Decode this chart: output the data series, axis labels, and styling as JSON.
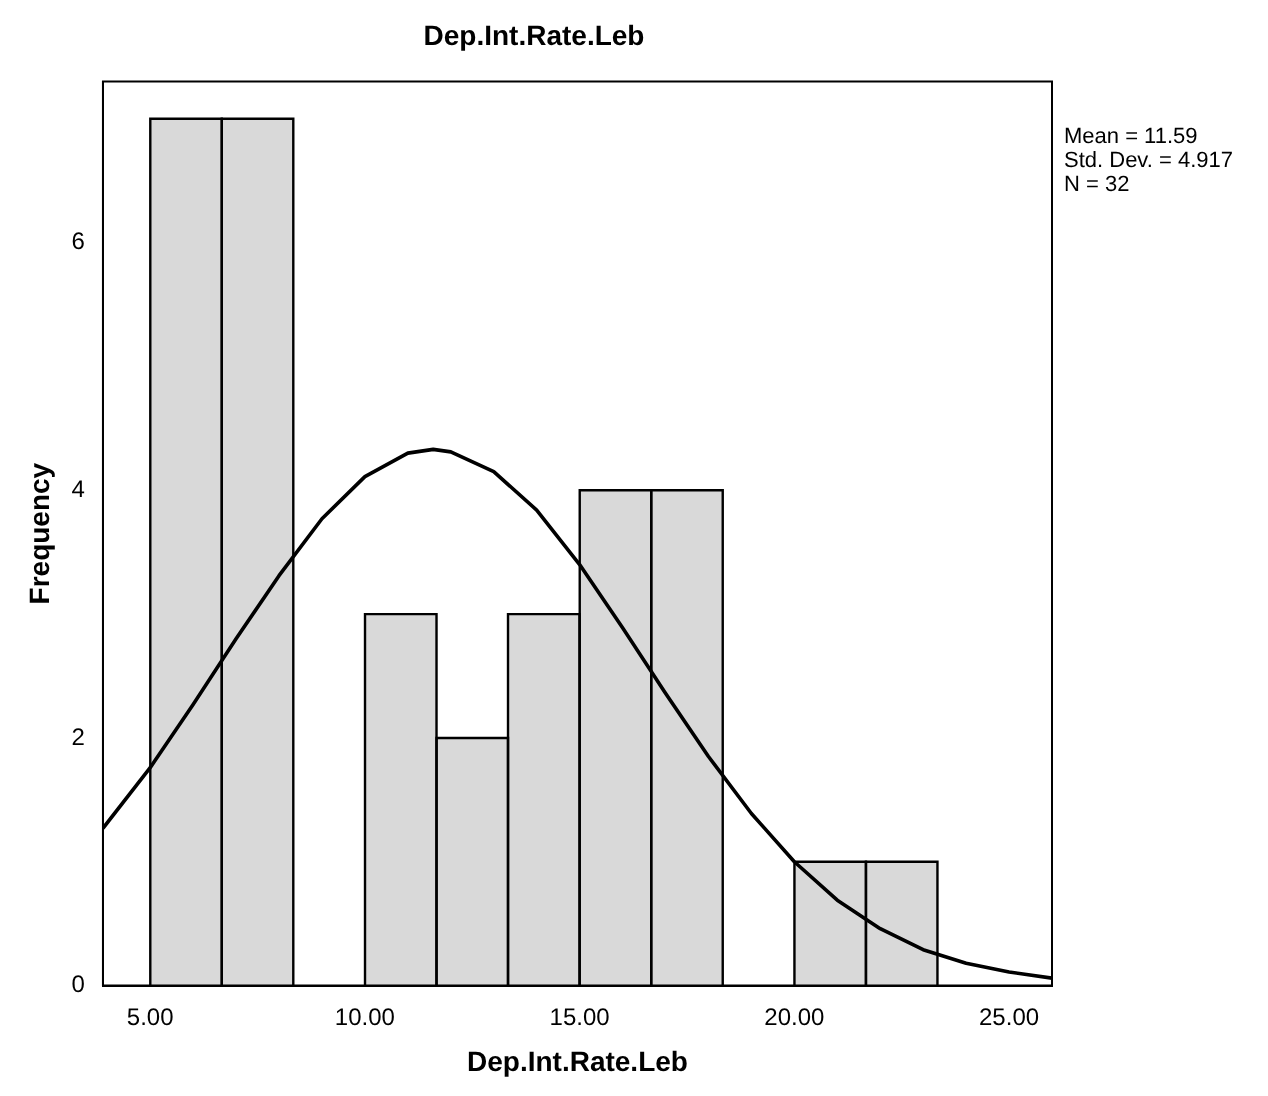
{
  "chart_data": {
    "type": "histogram",
    "title": "Dep.Int.Rate.Leb",
    "xlabel": "Dep.Int.Rate.Leb",
    "ylabel": "Frequency",
    "bins": [
      5,
      6.67,
      8.33,
      10,
      11.67,
      13.33,
      15,
      16.67,
      18.33,
      20,
      21.67,
      23.33
    ],
    "values": [
      7,
      7,
      0,
      3,
      2,
      3,
      4,
      4,
      0,
      1,
      1
    ],
    "color": "#d9d9d9",
    "series": [
      {
        "type": "line",
        "color": "#000000",
        "x": [
          3.9,
          5,
          6,
          7,
          8,
          9,
          10,
          11,
          11.59,
          12,
          13,
          14,
          15,
          16,
          17,
          18,
          19,
          20,
          21,
          22,
          23,
          24,
          25,
          26
        ],
        "values": [
          1.27,
          1.76,
          2.27,
          2.8,
          3.31,
          3.77,
          4.11,
          4.3,
          4.33,
          4.31,
          4.15,
          3.84,
          3.4,
          2.89,
          2.36,
          1.85,
          1.39,
          1.0,
          0.69,
          0.46,
          0.29,
          0.18,
          0.11,
          0.06
        ]
      }
    ],
    "xlim": [
      3.9,
      26
    ],
    "xticks": [
      {
        "value": 5,
        "label": "5.00"
      },
      {
        "value": 10,
        "label": "10.00"
      },
      {
        "value": 15,
        "label": "15.00"
      },
      {
        "value": 20,
        "label": "20.00"
      },
      {
        "value": 25,
        "label": "25.00"
      }
    ],
    "ylim": [
      0,
      7.3
    ],
    "yticks": [
      0,
      2,
      4,
      6
    ],
    "annotations": [
      "Mean = 11.59",
      "Std. Dev. = 4.917",
      "N = 32"
    ],
    "grid": false,
    "legend": false,
    "marker": "none"
  }
}
